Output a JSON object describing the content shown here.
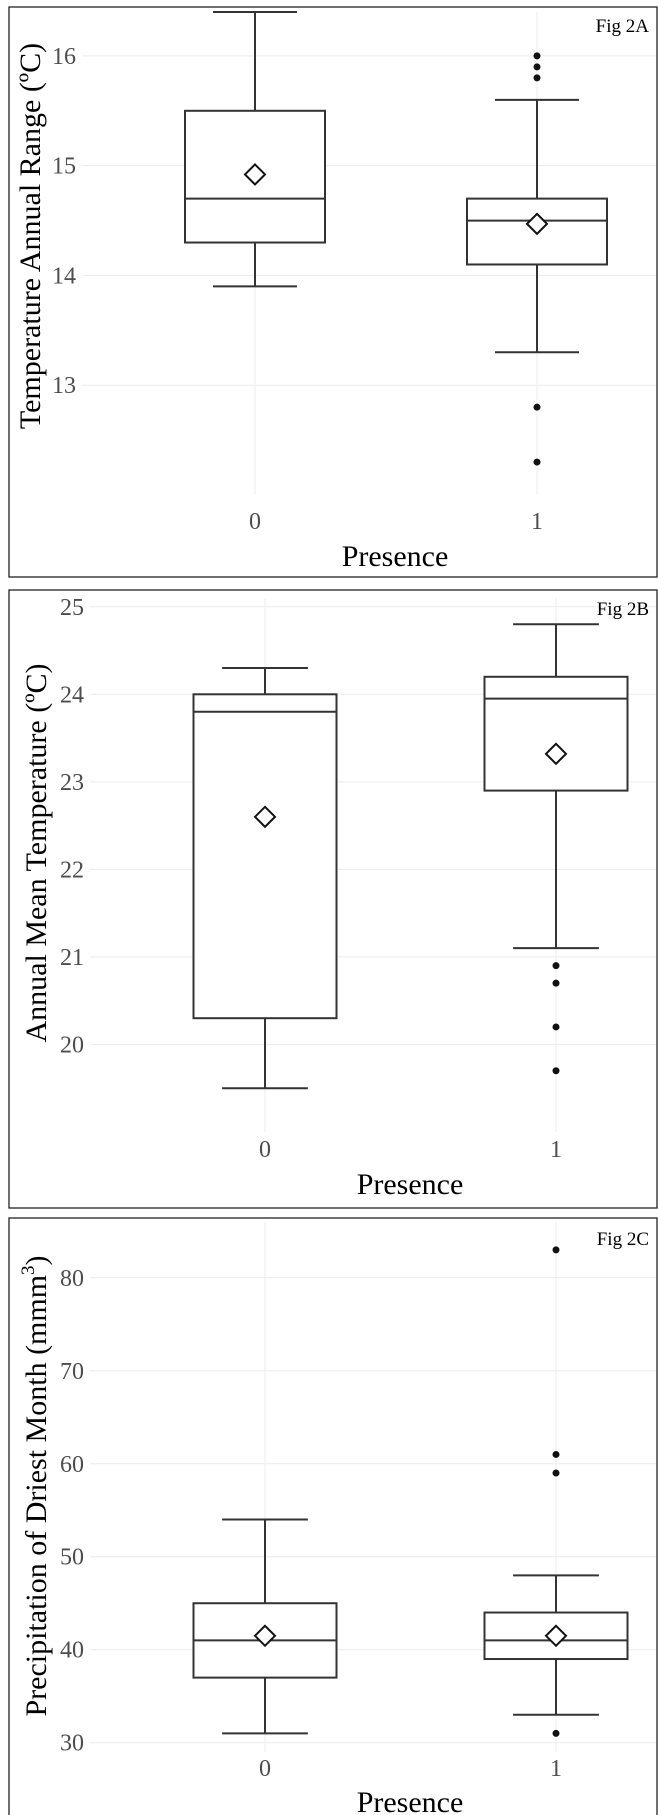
{
  "chart_data": [
    {
      "type": "box",
      "fig_label": "Fig 2A",
      "xlabel": "Presence",
      "ylabel": "Temperature Annual Range  (ºC)",
      "categories": [
        "0",
        "1"
      ],
      "ylim": [
        12.0,
        16.4
      ],
      "yticks": [
        13,
        14,
        15,
        16
      ],
      "grid": true,
      "boxes": [
        {
          "category": "0",
          "whisker_low": 13.9,
          "q1": 14.3,
          "median": 14.7,
          "q3": 15.5,
          "whisker_high": 16.4,
          "mean": 14.92,
          "outliers": []
        },
        {
          "category": "1",
          "whisker_low": 13.3,
          "q1": 14.1,
          "median": 14.5,
          "q3": 14.7,
          "whisker_high": 15.6,
          "mean": 14.47,
          "outliers": [
            12.3,
            12.8,
            15.8,
            15.9,
            16.0
          ]
        }
      ]
    },
    {
      "type": "box",
      "fig_label": "Fig 2B",
      "xlabel": "Presence",
      "ylabel": "Annual Mean Temperature (ºC)",
      "categories": [
        "0",
        "1"
      ],
      "ylim": [
        19.0,
        25.1
      ],
      "yticks": [
        20,
        21,
        22,
        23,
        24,
        25
      ],
      "grid": true,
      "boxes": [
        {
          "category": "0",
          "whisker_low": 19.5,
          "q1": 20.3,
          "median": 23.8,
          "q3": 24.0,
          "whisker_high": 24.3,
          "mean": 22.6,
          "outliers": []
        },
        {
          "category": "1",
          "whisker_low": 21.1,
          "q1": 22.9,
          "median": 23.95,
          "q3": 24.2,
          "whisker_high": 24.8,
          "mean": 23.32,
          "outliers": [
            19.7,
            20.2,
            20.7,
            20.9
          ]
        }
      ]
    },
    {
      "type": "box",
      "fig_label": "Fig 2C",
      "xlabel": "Presence",
      "ylabel_main": "Precipitation of Driest Month (mmm",
      "ylabel_sup": "3",
      "ylabel_end": ")",
      "categories": [
        "0",
        "1"
      ],
      "ylim": [
        29.0,
        86.0
      ],
      "yticks": [
        30,
        40,
        50,
        60,
        70,
        80
      ],
      "grid": true,
      "boxes": [
        {
          "category": "0",
          "whisker_low": 31,
          "q1": 37,
          "median": 41,
          "q3": 45,
          "whisker_high": 54,
          "mean": 41.5,
          "outliers": []
        },
        {
          "category": "1",
          "whisker_low": 33,
          "q1": 39,
          "median": 41,
          "q3": 44,
          "whisker_high": 48,
          "mean": 41.5,
          "outliers": [
            31,
            59,
            61,
            83
          ]
        }
      ]
    }
  ]
}
